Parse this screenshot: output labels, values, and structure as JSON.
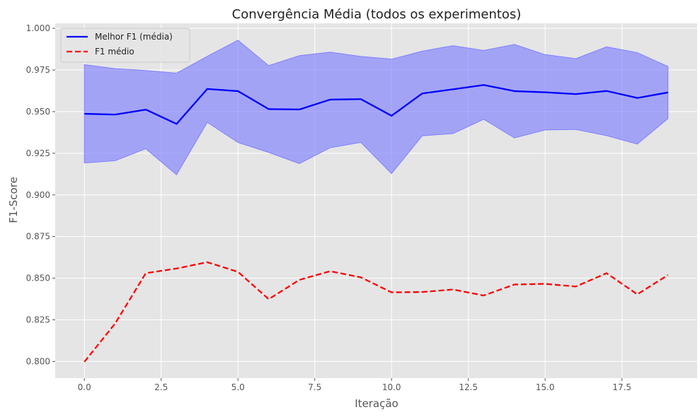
{
  "chart_data": {
    "type": "line",
    "title": "Convergência Média (todos os experimentos)",
    "xlabel": "Iteração",
    "ylabel": "F1-Score",
    "xlim": [
      -0.95,
      19.95
    ],
    "ylim": [
      0.79,
      1.003
    ],
    "xticks": [
      0.0,
      2.5,
      5.0,
      7.5,
      10.0,
      12.5,
      15.0,
      17.5
    ],
    "xtick_labels": [
      "0.0",
      "2.5",
      "5.0",
      "7.5",
      "10.0",
      "12.5",
      "15.0",
      "17.5"
    ],
    "yticks": [
      0.8,
      0.825,
      0.85,
      0.875,
      0.9,
      0.925,
      0.95,
      0.975,
      1.0
    ],
    "ytick_labels": [
      "0.800",
      "0.825",
      "0.850",
      "0.875",
      "0.900",
      "0.925",
      "0.950",
      "0.975",
      "1.000"
    ],
    "grid": true,
    "legend_position": "top-left",
    "x": [
      0,
      1,
      2,
      3,
      4,
      5,
      6,
      7,
      8,
      9,
      10,
      11,
      12,
      13,
      14,
      15,
      16,
      17,
      18,
      19
    ],
    "series": [
      {
        "name": "Melhor F1 (média)",
        "color": "#0000ff",
        "style": "solid",
        "values": [
          0.9487,
          0.9482,
          0.9512,
          0.9426,
          0.9636,
          0.9623,
          0.9515,
          0.9513,
          0.9572,
          0.9575,
          0.9475,
          0.9609,
          0.9634,
          0.966,
          0.9623,
          0.9616,
          0.9605,
          0.9624,
          0.9582,
          0.9615
        ],
        "band_upper": [
          0.9782,
          0.9758,
          0.9747,
          0.9731,
          0.9832,
          0.9929,
          0.9776,
          0.9836,
          0.9857,
          0.9831,
          0.9815,
          0.9863,
          0.9896,
          0.9867,
          0.9903,
          0.9842,
          0.9818,
          0.9889,
          0.9854,
          0.9771
        ],
        "band_lower": [
          0.9192,
          0.9205,
          0.9277,
          0.9121,
          0.9436,
          0.9315,
          0.9255,
          0.9188,
          0.9283,
          0.9315,
          0.9128,
          0.9355,
          0.9368,
          0.9454,
          0.9342,
          0.939,
          0.9393,
          0.9356,
          0.9305,
          0.9458
        ],
        "band_color": "#7f7fff"
      },
      {
        "name": "F1 médio",
        "color": "#ff0000",
        "style": "dashed",
        "values": [
          0.7998,
          0.8228,
          0.853,
          0.8558,
          0.8596,
          0.8538,
          0.8374,
          0.849,
          0.8542,
          0.8505,
          0.8415,
          0.8417,
          0.8432,
          0.8396,
          0.8462,
          0.8466,
          0.845,
          0.853,
          0.8403,
          0.8519
        ]
      }
    ]
  }
}
